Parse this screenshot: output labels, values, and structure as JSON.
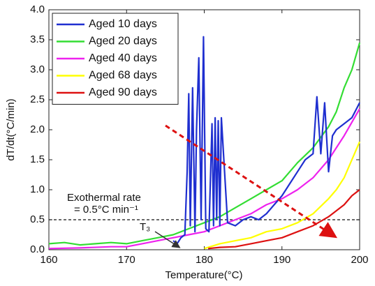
{
  "chart_data": {
    "type": "line",
    "x_label": "Temperature(°C)",
    "y_label": "dT/dt(°C/min)",
    "xlim": [
      160,
      200
    ],
    "xticks": [
      160,
      170,
      180,
      190,
      200
    ],
    "ylim": [
      0,
      4
    ],
    "yticks": [
      {
        "value": 0,
        "label": "0.0"
      },
      {
        "value": 0.5,
        "label": "0.5"
      },
      {
        "value": 1,
        "label": "1.0"
      },
      {
        "value": 1.5,
        "label": "1.5"
      },
      {
        "value": 2,
        "label": "2.0"
      },
      {
        "value": 2.5,
        "label": "2.5"
      },
      {
        "value": 3,
        "label": "3.0"
      },
      {
        "value": 3.5,
        "label": "3.5"
      },
      {
        "value": 4,
        "label": "4.0"
      }
    ],
    "reference_line": 0.5,
    "annotations": [
      "Exothermal rate",
      "= 0.5°C min⁻¹",
      "T₃"
    ],
    "legend": "upper left",
    "series": [
      {
        "name": "Aged 10 days",
        "color": "#1f2fd0",
        "x": [
          176,
          176.5,
          177,
          177.5,
          177.8,
          178,
          178.2,
          178.5,
          178.8,
          179,
          179.3,
          179.6,
          179.9,
          180.2,
          180.6,
          181,
          181.2,
          181.4,
          181.6,
          181.8,
          182,
          182.2,
          183,
          184,
          185,
          186,
          187,
          188,
          189,
          190,
          191,
          192,
          193,
          194,
          194.5,
          195,
          195.5,
          196,
          196.5,
          197,
          198,
          199,
          200
        ],
        "values": [
          0.15,
          0.1,
          0.2,
          0.25,
          1.3,
          2.6,
          0.4,
          2.7,
          0.3,
          2.0,
          3.2,
          0.5,
          3.55,
          0.35,
          0.3,
          2.1,
          0.4,
          2.2,
          0.5,
          2.15,
          0.4,
          2.2,
          0.45,
          0.4,
          0.5,
          0.55,
          0.5,
          0.6,
          0.75,
          0.9,
          1.1,
          1.3,
          1.5,
          1.6,
          2.55,
          1.6,
          2.45,
          1.3,
          1.9,
          2.0,
          2.1,
          2.2,
          2.45
        ]
      },
      {
        "name": "Aged 20 days",
        "color": "#33dd33",
        "x": [
          160,
          162,
          164,
          166,
          168,
          170,
          172,
          174,
          176,
          178,
          180,
          182,
          184,
          186,
          188,
          190,
          192,
          194,
          196,
          197,
          198,
          199,
          200
        ],
        "values": [
          0.1,
          0.12,
          0.08,
          0.1,
          0.12,
          0.1,
          0.15,
          0.2,
          0.25,
          0.35,
          0.45,
          0.55,
          0.7,
          0.85,
          1.0,
          1.15,
          1.45,
          1.7,
          2.05,
          2.3,
          2.7,
          3.0,
          3.45
        ]
      },
      {
        "name": "Aged 40 days",
        "color": "#ee22ee",
        "x": [
          160,
          164,
          168,
          170,
          172,
          174,
          176,
          178,
          180,
          182,
          184,
          186,
          188,
          190,
          192,
          194,
          196,
          198,
          200
        ],
        "values": [
          0.02,
          0.03,
          0.05,
          0.05,
          0.1,
          0.15,
          0.2,
          0.25,
          0.3,
          0.4,
          0.5,
          0.6,
          0.75,
          0.85,
          1.0,
          1.2,
          1.5,
          1.9,
          2.35
        ]
      },
      {
        "name": "Aged 68 days",
        "color": "#ffff00",
        "x": [
          180,
          182,
          184,
          186,
          188,
          190,
          192,
          194,
          196,
          197,
          198,
          199,
          200
        ],
        "values": [
          0.02,
          0.1,
          0.15,
          0.2,
          0.3,
          0.35,
          0.45,
          0.6,
          0.85,
          1.0,
          1.2,
          1.5,
          1.8
        ]
      },
      {
        "name": "Aged 90 days",
        "color": "#dd1111",
        "x": [
          180.5,
          182,
          184,
          186,
          188,
          190,
          192,
          194,
          196,
          198,
          199,
          200
        ],
        "values": [
          0.02,
          0.04,
          0.05,
          0.1,
          0.15,
          0.2,
          0.3,
          0.4,
          0.55,
          0.75,
          0.9,
          1.0
        ]
      }
    ]
  }
}
